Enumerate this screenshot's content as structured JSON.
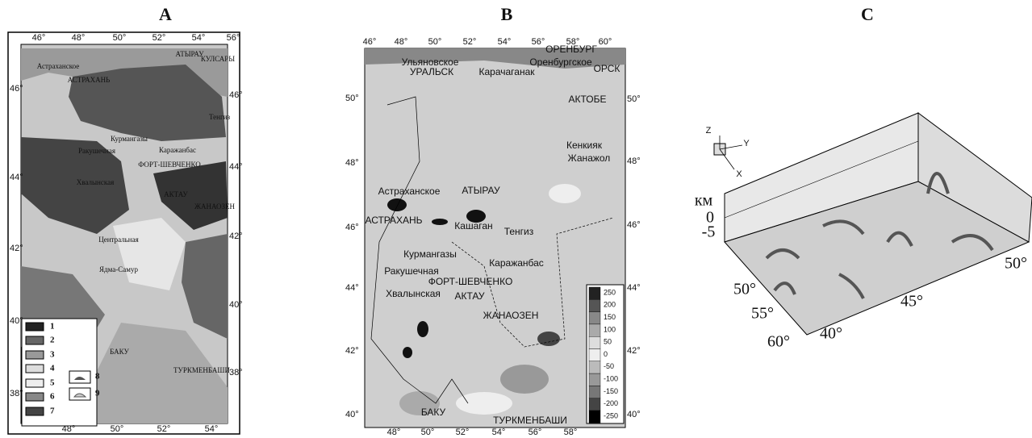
{
  "panels": [
    {
      "label": "A",
      "lon_top": [
        "46°",
        "48°",
        "50°",
        "52°",
        "54°",
        "56°"
      ],
      "lon_bottom": [
        "48°",
        "50°",
        "52°",
        "54°"
      ],
      "lat_left": [
        "46°",
        "44°",
        "42°",
        "40°",
        "38°"
      ],
      "lat_right": [
        "46°",
        "44°",
        "42°",
        "40°",
        "38°"
      ],
      "places": [
        "Астраханское",
        "АСТРАХАНЬ",
        "АТЫРАУ",
        "КУЛСАРЫ",
        "Тенгиз",
        "Курмангазы",
        "Каражанбас",
        "Ракушечная",
        "ФОРТ-ШЕВЧЕНКО",
        "Хвалынская",
        "АКТАУ",
        "ЖАНАОЗЕН",
        "Центральная",
        "Ядма-Самур",
        "БАКУ",
        "ТУРКМЕНБАШИ"
      ],
      "legend": [
        "1",
        "2",
        "3",
        "4",
        "5",
        "6",
        "7",
        "8",
        "9"
      ]
    },
    {
      "label": "B",
      "lon_top": [
        "46°",
        "48°",
        "50°",
        "52°",
        "54°",
        "56°",
        "58°",
        "60°"
      ],
      "lon_bottom": [
        "48°",
        "50°",
        "52°",
        "54°",
        "56°",
        "58°"
      ],
      "lat_left": [
        "50°",
        "48°",
        "46°",
        "44°",
        "42°",
        "40°"
      ],
      "lat_right": [
        "50°",
        "48°",
        "46°",
        "44°",
        "42°",
        "40°"
      ],
      "places": [
        "ОРЕНБУРГ",
        "Ульяновское",
        "Оренбургское",
        "УРАЛЬСК",
        "Карачаганак",
        "ОРСК",
        "АКТОБЕ",
        "Кенкияк",
        "Жанажол",
        "Астраханское",
        "АТЫРАУ",
        "АСТРАХАНЬ",
        "Кашаган",
        "Тенгиз",
        "Курмангазы",
        "Каражанбас",
        "Ракушечная",
        "ФОРТ-ШЕВЧЕНКО",
        "Хвалынская",
        "АКТАУ",
        "ЖАНАОЗЕН",
        "БАКУ",
        "ТУРКМЕНБАШИ"
      ],
      "colorbar": [
        250,
        200,
        150,
        100,
        50,
        0,
        -50,
        -100,
        -150,
        -200,
        -250
      ]
    },
    {
      "label": "C",
      "axis_unit": "км",
      "depths": [
        "0",
        "-5"
      ],
      "lat_labels": [
        "50°",
        "55°",
        "60°"
      ],
      "lon_labels": [
        "40°",
        "45°",
        "50°"
      ],
      "axes_icon": [
        "Z",
        "Y",
        "X"
      ]
    }
  ]
}
